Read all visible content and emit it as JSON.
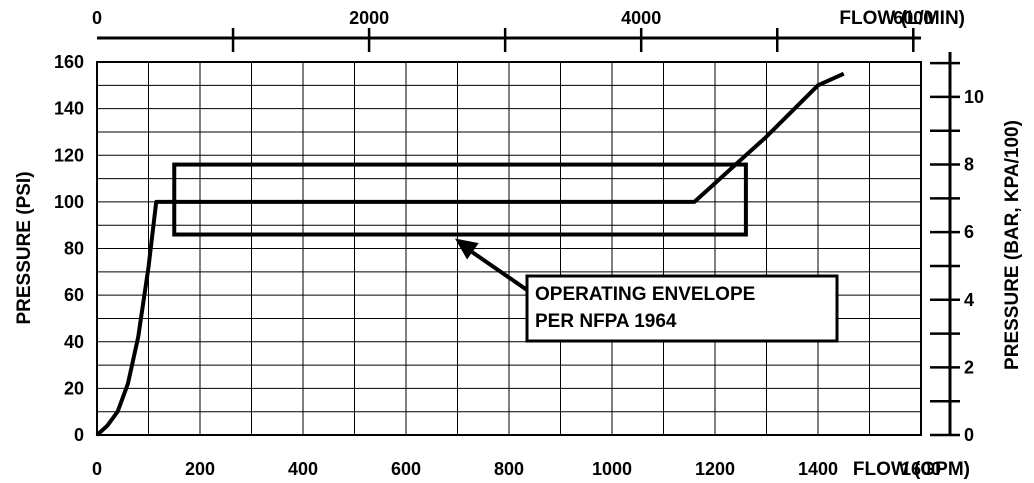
{
  "chart_data": {
    "type": "line",
    "xlabel": "FLOW (GPM)",
    "ylabel": "PRESSURE (PSI)",
    "xlim": [
      0,
      1600
    ],
    "ylim": [
      0,
      160
    ],
    "x_ticks": [
      "0",
      "200",
      "400",
      "600",
      "800",
      "1000",
      "1200",
      "1400",
      "1600"
    ],
    "y_ticks": [
      "0",
      "20",
      "40",
      "60",
      "80",
      "100",
      "120",
      "140",
      "160"
    ],
    "grid": true,
    "top_axis": {
      "label": "FLOW (L/MIN)",
      "ticks": [
        "0",
        "2000",
        "4000",
        "6000"
      ]
    },
    "right_axis": {
      "label": "PRESSURE (BAR, KPA/100)",
      "ticks": [
        "0",
        "2",
        "4",
        "6",
        "8",
        "10"
      ]
    },
    "series": [
      {
        "x": [
          0,
          10,
          20,
          40,
          60,
          80,
          100,
          115,
          120,
          1160,
          1200,
          1250,
          1300,
          1350,
          1400,
          1450
        ],
        "y": [
          0,
          2,
          4,
          10,
          22,
          42,
          72,
          100,
          100,
          100,
          108,
          118,
          128,
          139,
          150,
          155
        ]
      }
    ],
    "envelope": {
      "x": [
        150,
        1260
      ],
      "y": [
        86,
        116
      ]
    },
    "annotation": {
      "lines": [
        "OPERATING ENVELOPE",
        "PER NFPA 1964"
      ]
    }
  }
}
